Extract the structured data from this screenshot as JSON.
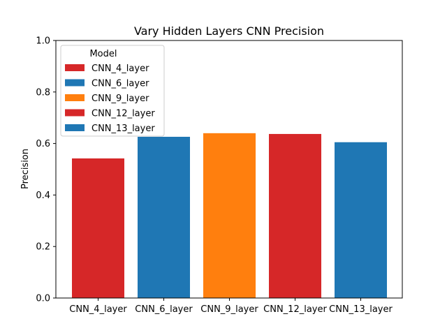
{
  "chart_data": {
    "type": "bar",
    "title": "Vary Hidden Layers CNN Precision",
    "xlabel": "",
    "ylabel": "Precision",
    "ylim": [
      0,
      1.0
    ],
    "yticks": [
      "0.0",
      "0.2",
      "0.4",
      "0.6",
      "0.8",
      "1.0"
    ],
    "grid": false,
    "categories": [
      "CNN_4_layer",
      "CNN_6_layer",
      "CNN_9_layer",
      "CNN_12_layer",
      "CNN_13_layer"
    ],
    "values": [
      0.542,
      0.626,
      0.64,
      0.637,
      0.605
    ],
    "colors": [
      "#d62728",
      "#1f77b4",
      "#ff7f0e",
      "#d62728",
      "#1f77b4"
    ],
    "legend": {
      "title": "Model",
      "placement": "top-left",
      "entries": [
        "CNN_4_layer",
        "CNN_6_layer",
        "CNN_9_layer",
        "CNN_12_layer",
        "CNN_13_layer"
      ]
    }
  }
}
